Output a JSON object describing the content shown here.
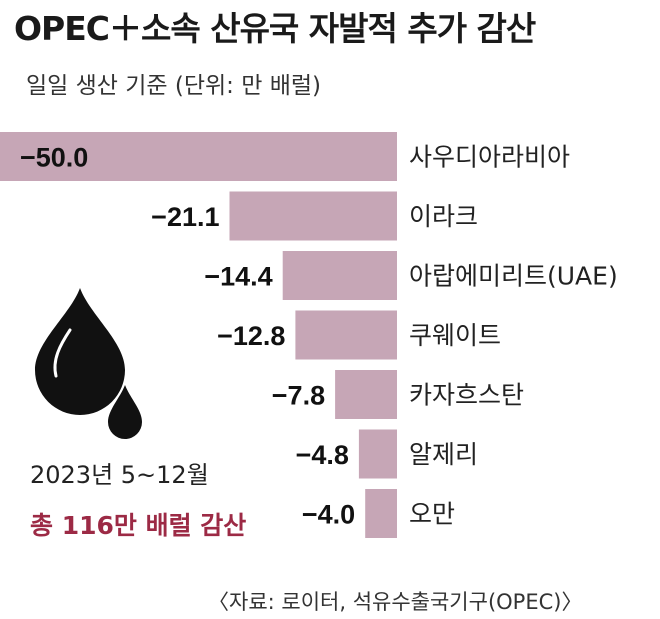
{
  "title": "OPEC＋소속 산유국 자발적 추가 감산",
  "subtitle": "일일 생산 기준  (단위: 만 배럴)",
  "note": "2023년 5~12월",
  "total": "총 116만 배럴 감산",
  "source": "〈자료: 로이터, 석유수출국기구(OPEC)〉",
  "colors": {
    "bar": "#c6a6b6",
    "total_text": "#9c2a45"
  },
  "chart_data": {
    "type": "bar",
    "orientation": "horizontal",
    "title": "OPEC＋소속 산유국 자발적 추가 감산",
    "subtitle": "일일 생산 기준  (단위: 만 배럴)",
    "categories": [
      "사우디아라비아",
      "이라크",
      "아랍에미리트(UAE)",
      "쿠웨이트",
      "카자흐스탄",
      "알제리",
      "오만"
    ],
    "values": [
      -50.0,
      -21.1,
      -14.4,
      -12.8,
      -7.8,
      -4.8,
      -4.0
    ],
    "value_labels": [
      "−50.0",
      "−21.1",
      "−14.4",
      "−12.8",
      "−7.8",
      "−4.8",
      "−4.0"
    ],
    "xlim": [
      -50,
      0
    ],
    "grid": false,
    "legend": "none"
  }
}
